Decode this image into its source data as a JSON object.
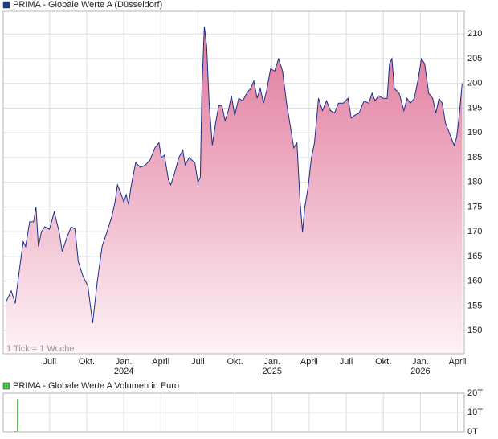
{
  "chart_data": [
    {
      "type": "area",
      "title": "PRIMA - Globale Werte A (Düsseldorf)",
      "annotation": "1 Tick = 1 Woche",
      "color": "#1a2f8a",
      "fill_top": "#e0779a",
      "fill_bottom": "#fdf2f6",
      "legend_color": "#1a3a8a",
      "x": [
        2023.209,
        2023.241,
        2023.268,
        2023.295,
        2023.322,
        2023.338,
        2023.365,
        2023.392,
        2023.408,
        2023.424,
        2023.445,
        2023.467,
        2023.499,
        2023.531,
        2023.564,
        2023.585,
        2023.618,
        2023.645,
        2023.671,
        2023.693,
        2023.725,
        2023.758,
        2023.79,
        2023.822,
        2023.854,
        2023.887,
        2023.919,
        2023.941,
        2023.957,
        2023.978,
        2024.0,
        2024.016,
        2024.032,
        2024.048,
        2024.08,
        2024.113,
        2024.145,
        2024.177,
        2024.21,
        2024.237,
        2024.253,
        2024.274,
        2024.301,
        2024.317,
        2024.344,
        2024.371,
        2024.398,
        2024.414,
        2024.441,
        2024.479,
        2024.5,
        2024.516,
        2024.527,
        2024.543,
        2024.559,
        2024.576,
        2024.597,
        2024.619,
        2024.64,
        2024.662,
        2024.683,
        2024.705,
        2024.726,
        2024.748,
        2024.775,
        2024.802,
        2024.829,
        2024.855,
        2024.877,
        2024.899,
        2024.92,
        2024.942,
        2024.963,
        2024.99,
        2025.017,
        2025.044,
        2025.071,
        2025.098,
        2025.125,
        2025.146,
        2025.168,
        2025.189,
        2025.205,
        2025.221,
        2025.243,
        2025.265,
        2025.286,
        2025.313,
        2025.34,
        2025.367,
        2025.394,
        2025.421,
        2025.447,
        2025.48,
        2025.512,
        2025.534,
        2025.555,
        2025.587,
        2025.62,
        2025.652,
        2025.674,
        2025.695,
        2025.717,
        2025.749,
        2025.776,
        2025.792,
        2025.808,
        2025.824,
        2025.857,
        2025.889,
        2025.91,
        2025.932,
        2025.959,
        2025.986,
        2026.007,
        2026.029,
        2026.056,
        2026.083,
        2026.104,
        2026.126,
        2026.147,
        2026.169,
        2026.201,
        2026.228,
        2026.244,
        2026.26,
        2026.282
      ],
      "values": [
        156,
        158,
        155.5,
        162,
        168,
        167,
        172,
        172,
        175,
        167,
        170,
        171,
        170.5,
        174,
        170,
        166,
        169,
        171,
        170.5,
        164,
        161,
        159,
        151.5,
        160,
        167,
        170,
        173,
        176,
        179.5,
        178,
        176,
        177.5,
        175.5,
        179,
        184,
        183,
        183.5,
        184.5,
        187,
        188,
        185,
        185.5,
        180.5,
        179.5,
        182,
        185,
        186.5,
        183.5,
        185,
        184,
        180,
        181,
        199,
        211.5,
        207.5,
        196,
        187.5,
        192,
        195.5,
        195.5,
        192.5,
        194.5,
        197.5,
        193.5,
        197,
        196.5,
        198,
        199,
        200.5,
        197,
        199,
        196,
        198.5,
        203,
        202.5,
        205,
        202.5,
        196,
        191,
        187,
        188,
        176,
        170,
        175,
        179,
        185,
        188,
        197,
        194.5,
        196.5,
        194.5,
        194,
        196,
        196,
        197,
        193,
        193.5,
        194,
        196.5,
        196,
        198,
        196.5,
        197.5,
        197,
        197,
        204,
        205,
        199,
        198,
        194.5,
        197,
        196,
        197,
        201,
        205,
        204,
        198,
        197,
        194,
        197,
        196,
        192,
        189.5,
        187.5,
        189,
        193,
        200
      ],
      "xlim": [
        2023.187,
        2026.296
      ],
      "ylim": [
        145.3,
        214.6
      ],
      "yticks": [
        150,
        155,
        160,
        165,
        170,
        175,
        180,
        185,
        190,
        195,
        200,
        205,
        210
      ],
      "xticks": [
        {
          "value": 2023.5,
          "label": "Juli"
        },
        {
          "value": 2023.75,
          "label": "Okt."
        },
        {
          "value": 2024.0,
          "label": "Jan."
        },
        {
          "value": 2024.25,
          "label": "April"
        },
        {
          "value": 2024.5,
          "label": "Juli"
        },
        {
          "value": 2024.75,
          "label": "Okt."
        },
        {
          "value": 2025.0,
          "label": "Jan."
        },
        {
          "value": 2025.25,
          "label": "April"
        },
        {
          "value": 2025.5,
          "label": "Juli"
        },
        {
          "value": 2025.75,
          "label": "Okt."
        },
        {
          "value": 2026.0,
          "label": "Jan."
        },
        {
          "value": 2026.25,
          "label": "April"
        }
      ],
      "year_labels": [
        {
          "value": 2024.0,
          "label": "2024"
        },
        {
          "value": 2025.0,
          "label": "2025"
        },
        {
          "value": 2026.0,
          "label": "2026"
        }
      ],
      "grid": true
    },
    {
      "type": "bar",
      "title": "PRIMA - Globale Werte A Volumen in Euro",
      "legend_color": "#44bb44",
      "x": [
        2023.268,
        2023.284
      ],
      "values": [
        0.4,
        17
      ],
      "colors": [
        "#d00000",
        "#22cc22"
      ],
      "xlim": [
        2023.187,
        2026.296
      ],
      "ylim": [
        0,
        20
      ],
      "yticks": [
        {
          "value": 0,
          "label": "0T"
        },
        {
          "value": 10,
          "label": "10T"
        },
        {
          "value": 20,
          "label": "20T"
        }
      ],
      "grid": true
    }
  ]
}
